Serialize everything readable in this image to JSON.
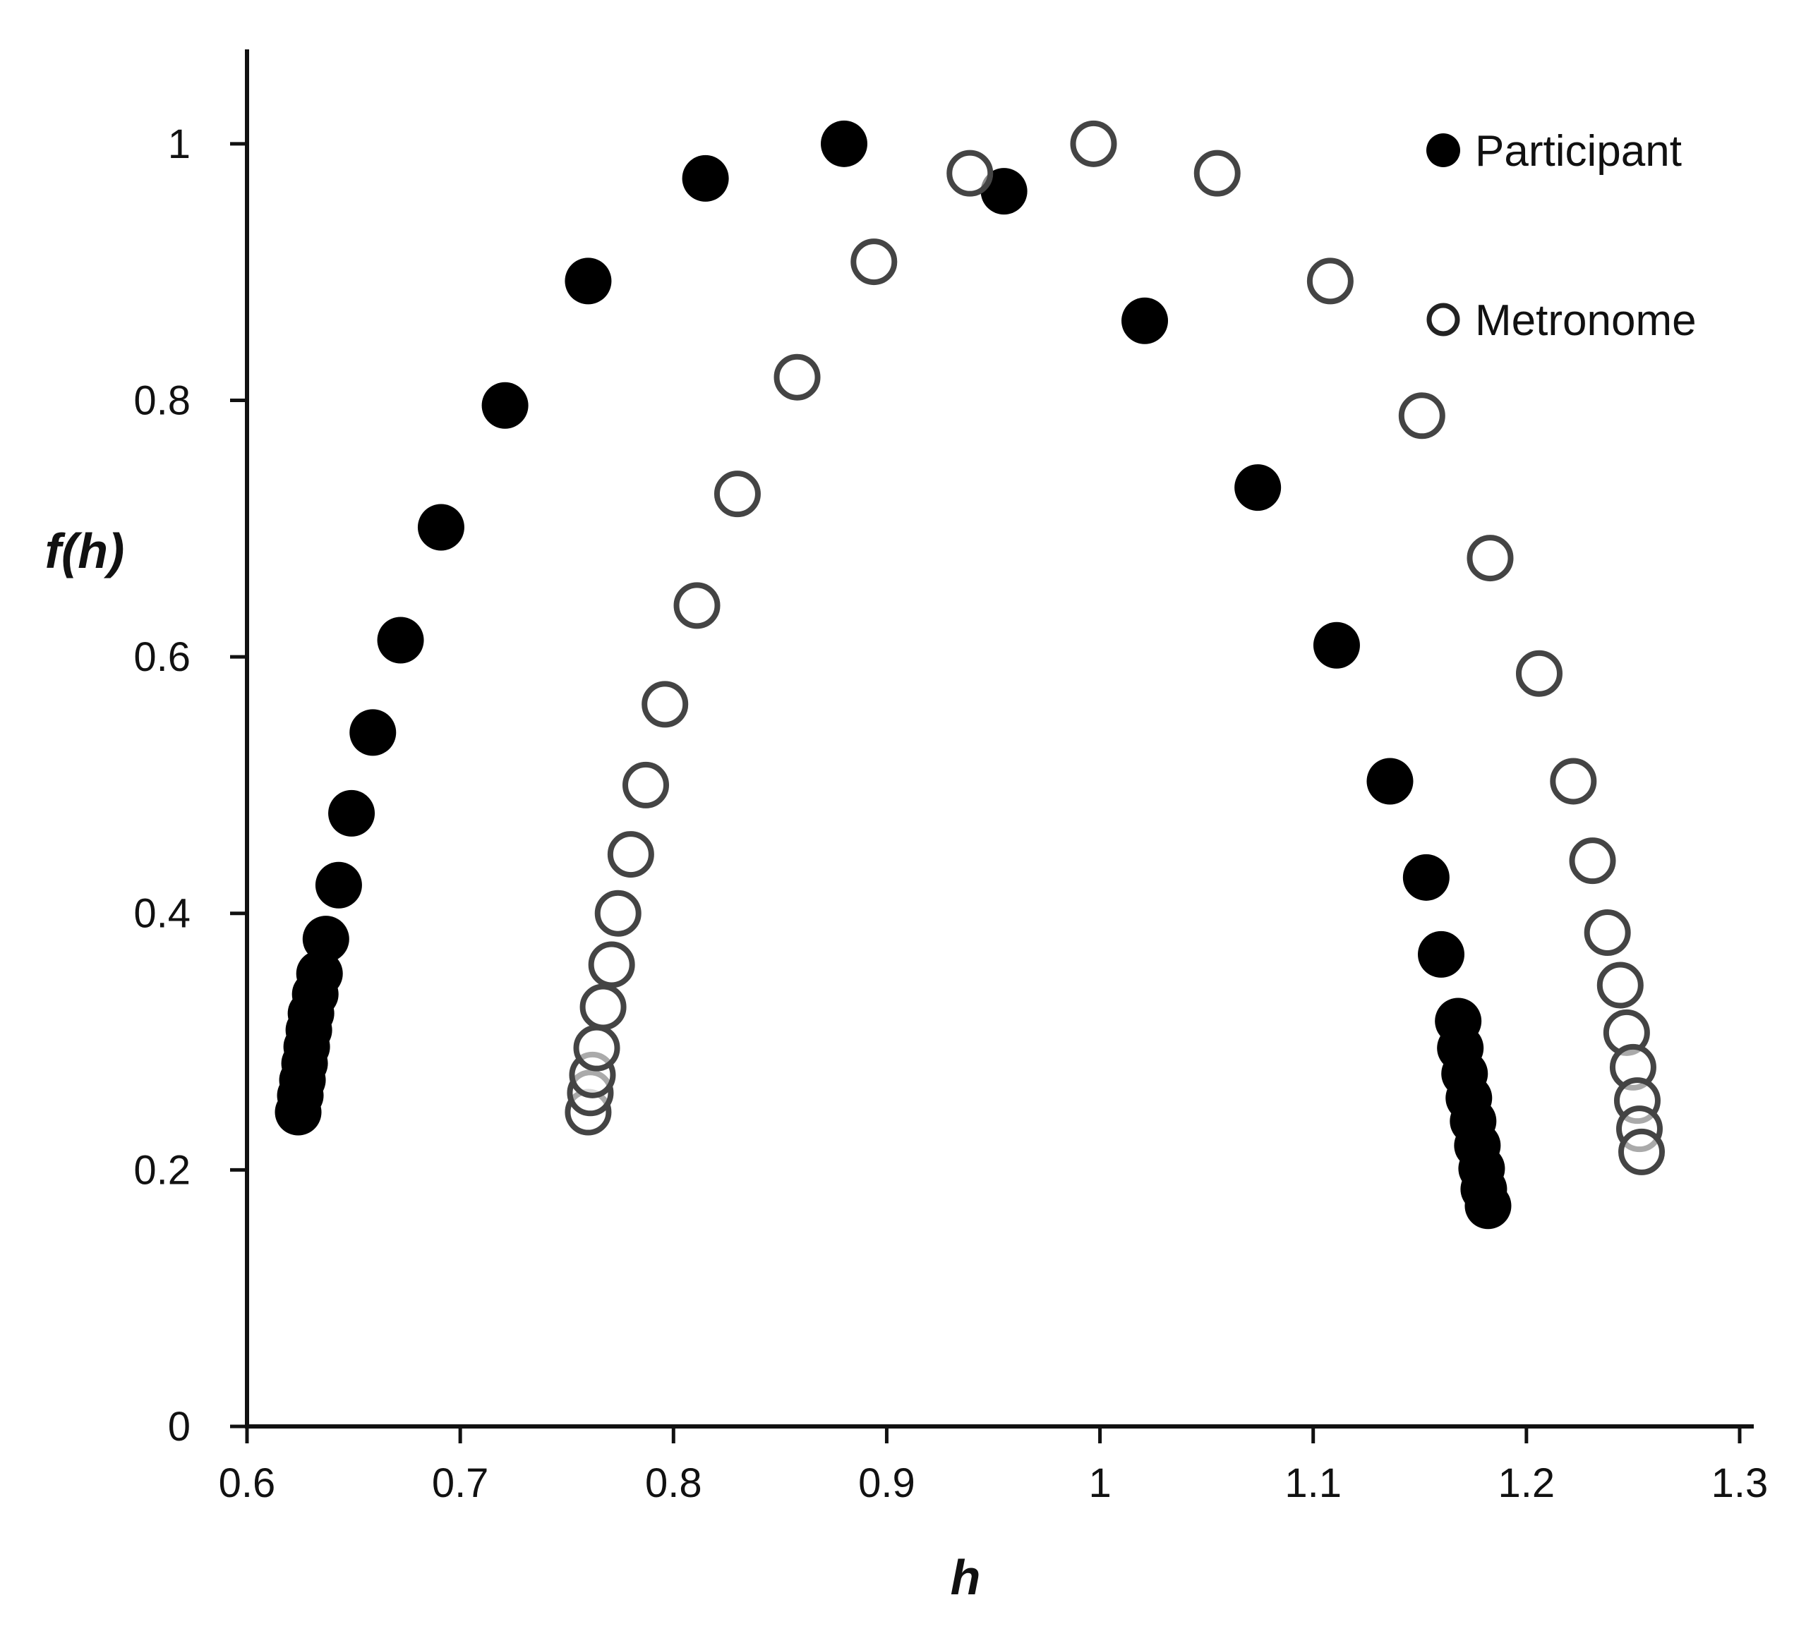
{
  "chart_data": {
    "type": "scatter",
    "title": "",
    "xlabel": "h",
    "ylabel": "f(h)",
    "xlim": [
      0.6,
      1.3
    ],
    "ylim": [
      0,
      1.1
    ],
    "xticks": [
      0.6,
      0.7,
      0.8,
      0.9,
      1,
      1.1,
      1.2,
      1.3
    ],
    "xtick_labels": [
      "0.6",
      "0.7",
      "0.8",
      "0.9",
      "1",
      "1.1",
      "1.2",
      "1.3"
    ],
    "yticks": [
      0,
      0.2,
      0.4,
      0.6,
      0.8,
      1
    ],
    "ytick_labels": [
      "0",
      "0.2",
      "0.4",
      "0.6",
      "0.8",
      "1"
    ],
    "grid": false,
    "legend_position": "top-right",
    "series": [
      {
        "name": "Participant",
        "marker": "filled-circle",
        "color": "#000000",
        "points": [
          [
            0.624,
            0.245
          ],
          [
            0.625,
            0.258
          ],
          [
            0.626,
            0.27
          ],
          [
            0.627,
            0.283
          ],
          [
            0.628,
            0.296
          ],
          [
            0.629,
            0.309
          ],
          [
            0.63,
            0.322
          ],
          [
            0.632,
            0.337
          ],
          [
            0.634,
            0.353
          ],
          [
            0.637,
            0.38
          ],
          [
            0.643,
            0.422
          ],
          [
            0.649,
            0.478
          ],
          [
            0.659,
            0.541
          ],
          [
            0.672,
            0.613
          ],
          [
            0.691,
            0.701
          ],
          [
            0.721,
            0.796
          ],
          [
            0.76,
            0.893
          ],
          [
            0.815,
            0.973
          ],
          [
            0.88,
            1.0
          ],
          [
            0.955,
            0.963
          ],
          [
            1.021,
            0.862
          ],
          [
            1.074,
            0.732
          ],
          [
            1.111,
            0.609
          ],
          [
            1.136,
            0.503
          ],
          [
            1.153,
            0.428
          ],
          [
            1.16,
            0.368
          ],
          [
            1.168,
            0.316
          ],
          [
            1.169,
            0.295
          ],
          [
            1.171,
            0.275
          ],
          [
            1.173,
            0.256
          ],
          [
            1.175,
            0.238
          ],
          [
            1.177,
            0.219
          ],
          [
            1.179,
            0.201
          ],
          [
            1.18,
            0.185
          ],
          [
            1.182,
            0.172
          ]
        ]
      },
      {
        "name": "Metronome",
        "marker": "open-circle",
        "color": "#444444",
        "points": [
          [
            0.76,
            0.245
          ],
          [
            0.761,
            0.26
          ],
          [
            0.762,
            0.274
          ],
          [
            0.764,
            0.295
          ],
          [
            0.767,
            0.327
          ],
          [
            0.771,
            0.36
          ],
          [
            0.774,
            0.4
          ],
          [
            0.78,
            0.446
          ],
          [
            0.787,
            0.5
          ],
          [
            0.796,
            0.563
          ],
          [
            0.811,
            0.64
          ],
          [
            0.83,
            0.727
          ],
          [
            0.858,
            0.818
          ],
          [
            0.894,
            0.908
          ],
          [
            0.939,
            0.977
          ],
          [
            0.997,
            1.0
          ],
          [
            1.055,
            0.977
          ],
          [
            1.108,
            0.893
          ],
          [
            1.151,
            0.788
          ],
          [
            1.183,
            0.677
          ],
          [
            1.206,
            0.587
          ],
          [
            1.222,
            0.503
          ],
          [
            1.231,
            0.441
          ],
          [
            1.238,
            0.385
          ],
          [
            1.244,
            0.344
          ],
          [
            1.247,
            0.307
          ],
          [
            1.25,
            0.28
          ],
          [
            1.252,
            0.254
          ],
          [
            1.253,
            0.232
          ],
          [
            1.254,
            0.214
          ]
        ]
      }
    ]
  }
}
